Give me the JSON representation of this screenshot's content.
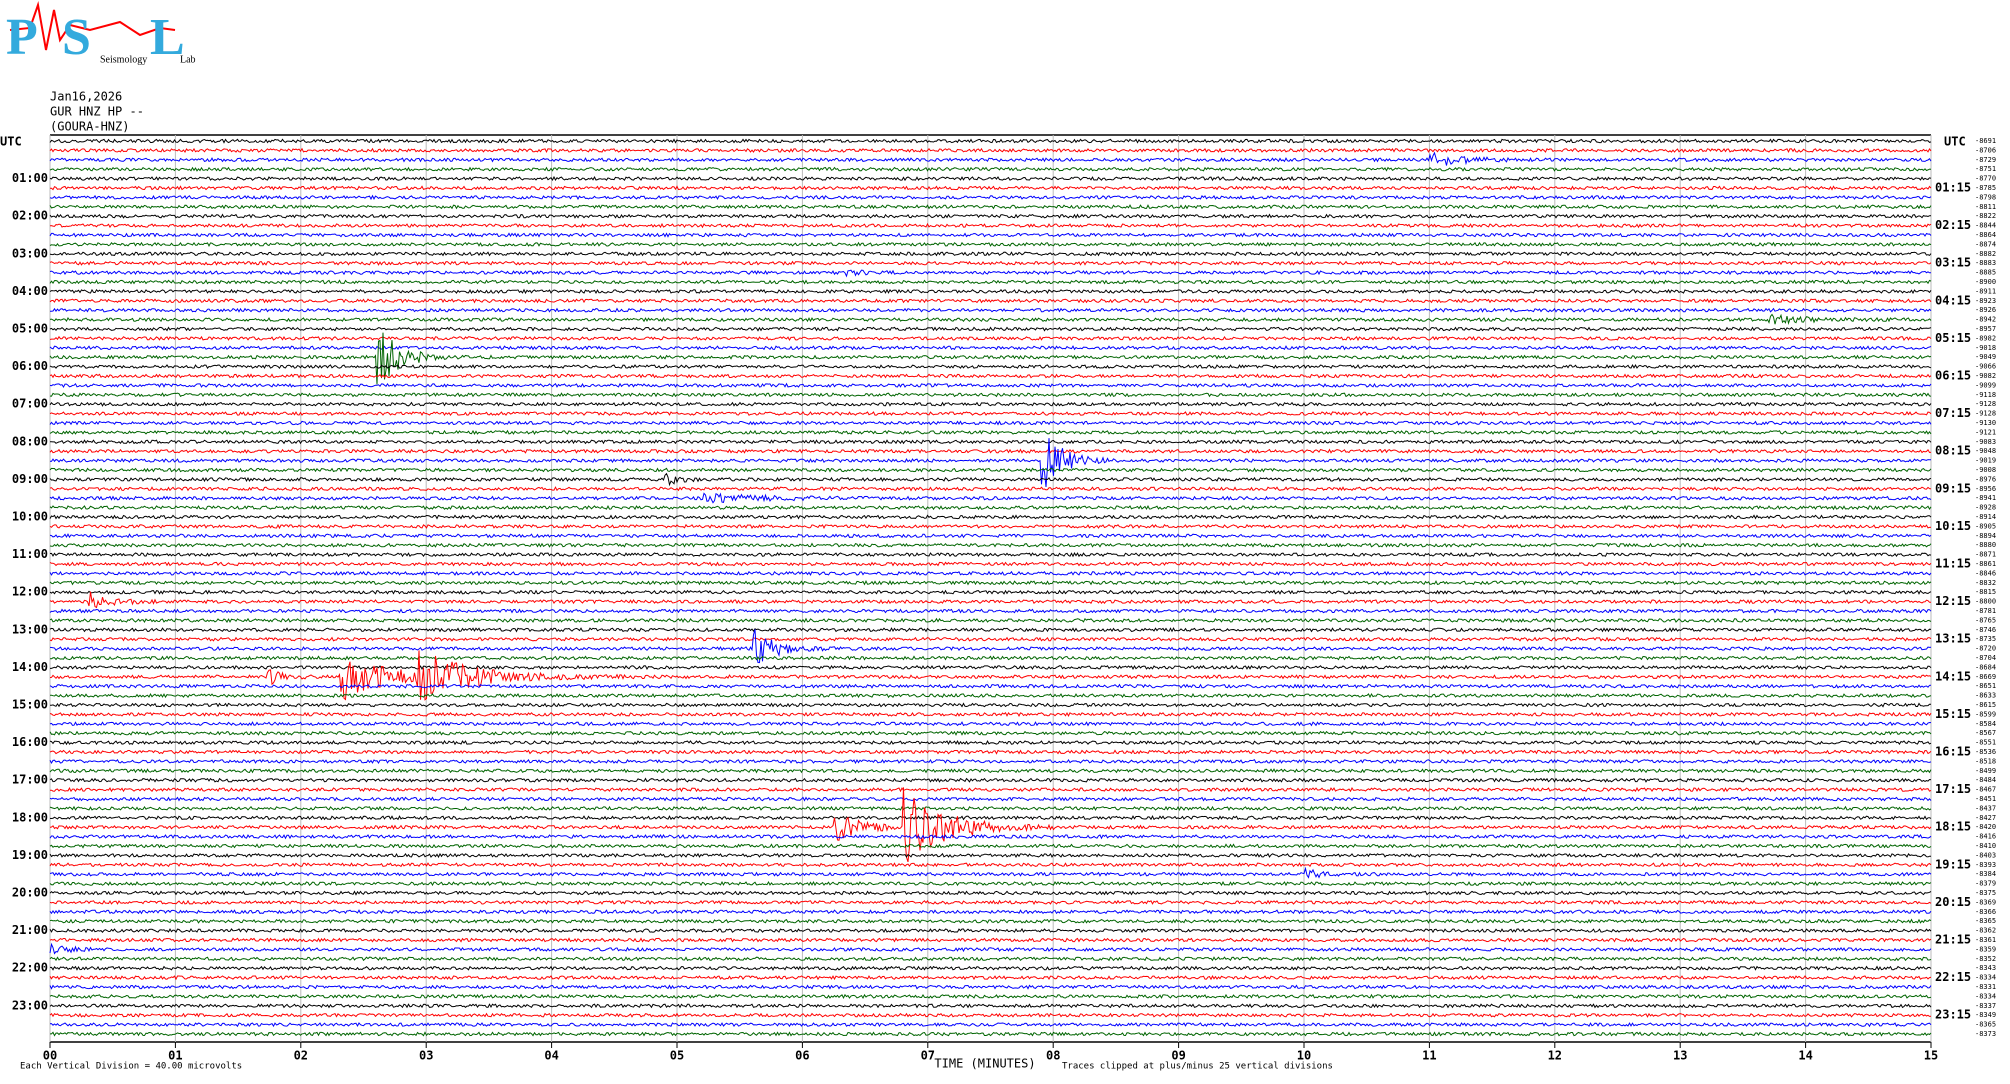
{
  "logo": {
    "letters": [
      "P",
      "S",
      "L"
    ],
    "words": [
      "Seismology",
      "Lab"
    ]
  },
  "header": {
    "date": "Jan16,2026",
    "station": "GUR HNZ HP --",
    "site": "(GOURA-HNZ)"
  },
  "left_axis": {
    "title": "UTC",
    "labels": [
      "01:00",
      "02:00",
      "03:00",
      "04:00",
      "05:00",
      "06:00",
      "07:00",
      "08:00",
      "09:00",
      "10:00",
      "11:00",
      "12:00",
      "13:00",
      "14:00",
      "15:00",
      "16:00",
      "17:00",
      "18:00",
      "19:00",
      "20:00",
      "21:00",
      "22:00",
      "23:00"
    ]
  },
  "right_axis": {
    "title": "UTC",
    "labels": [
      "01:15",
      "02:15",
      "03:15",
      "04:15",
      "05:15",
      "06:15",
      "07:15",
      "08:15",
      "09:15",
      "10:15",
      "11:15",
      "12:15",
      "13:15",
      "14:15",
      "15:15",
      "16:15",
      "17:15",
      "18:15",
      "19:15",
      "20:15",
      "21:15",
      "22:15",
      "23:15"
    ]
  },
  "trace_offsets": [
    -8691,
    -8706,
    -8729,
    -8751,
    -8770,
    -8785,
    -8798,
    -8811,
    -8822,
    -8844,
    -8864,
    -8874,
    -8882,
    -8883,
    -8885,
    -8900,
    -8911,
    -8923,
    -8926,
    -8942,
    -8957,
    -8982,
    -9018,
    -9049,
    -9066,
    -9082,
    -9099,
    -9118,
    -9128,
    -9128,
    -9130,
    -9121,
    -9083,
    -9048,
    -9019,
    -9008,
    -8976,
    -8956,
    -8941,
    -8928,
    -8914,
    -8905,
    -8894,
    -8880,
    -8871,
    -8861,
    -8846,
    -8832,
    -8815,
    -8800,
    -8781,
    -8765,
    -8746,
    -8735,
    -8720,
    -8704,
    -8684,
    -8669,
    -8651,
    -8633,
    -8615,
    -8599,
    -8584,
    -8567,
    -8551,
    -8536,
    -8518,
    -8499,
    -8484,
    -8467,
    -8451,
    -8437,
    -8427,
    -8420,
    -8416,
    -8410,
    -8403,
    -8393,
    -8384,
    -8379,
    -8375,
    -8369,
    -8366,
    -8365,
    -8362,
    -8361,
    -8359,
    -8352,
    -8343,
    -8334,
    -8331,
    -8334,
    -8337,
    -8349,
    -8365,
    -8373
  ],
  "x_axis": {
    "labels": [
      "00",
      "01",
      "02",
      "03",
      "04",
      "05",
      "06",
      "07",
      "08",
      "09",
      "10",
      "11",
      "12",
      "13",
      "14",
      "15"
    ],
    "title": "TIME (MINUTES)"
  },
  "footer": {
    "scale": "Each Vertical Division =   40.00 microvolts",
    "note": "Traces clipped at plus/minus 25 vertical divisions"
  },
  "trace_colors": [
    "#000000",
    "#ff0000",
    "#0000ff",
    "#006400"
  ]
}
